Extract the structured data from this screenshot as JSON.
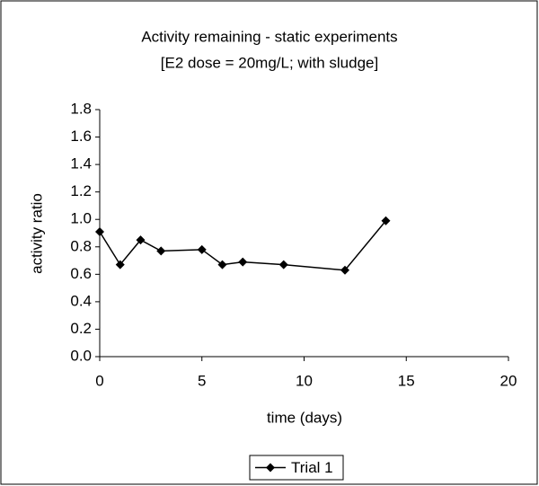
{
  "chart_data": {
    "type": "line",
    "title": "Activity remaining - static experiments",
    "subtitle": "[E2 dose = 20mg/L; with sludge]",
    "x_label": "time (days)",
    "y_label": "activity ratio",
    "x": [
      0,
      1,
      2,
      3,
      5,
      6,
      7,
      9,
      12,
      14
    ],
    "series": [
      {
        "name": "Trial 1",
        "color": "#000000",
        "values": [
          0.91,
          0.67,
          0.85,
          0.77,
          0.78,
          0.67,
          0.69,
          0.67,
          0.63,
          0.99
        ]
      }
    ],
    "xlim": [
      0,
      20
    ],
    "xticks": [
      0,
      5,
      10,
      15,
      20
    ],
    "ylim": [
      0,
      1.8
    ],
    "yticks": [
      {
        "value": 0,
        "label": "0.0"
      },
      0.2,
      0.4,
      0.6,
      0.8,
      {
        "value": 1,
        "label": "1.0"
      },
      1.2,
      1.4,
      1.6,
      1.8
    ],
    "grid": false,
    "legend": "bottom"
  }
}
